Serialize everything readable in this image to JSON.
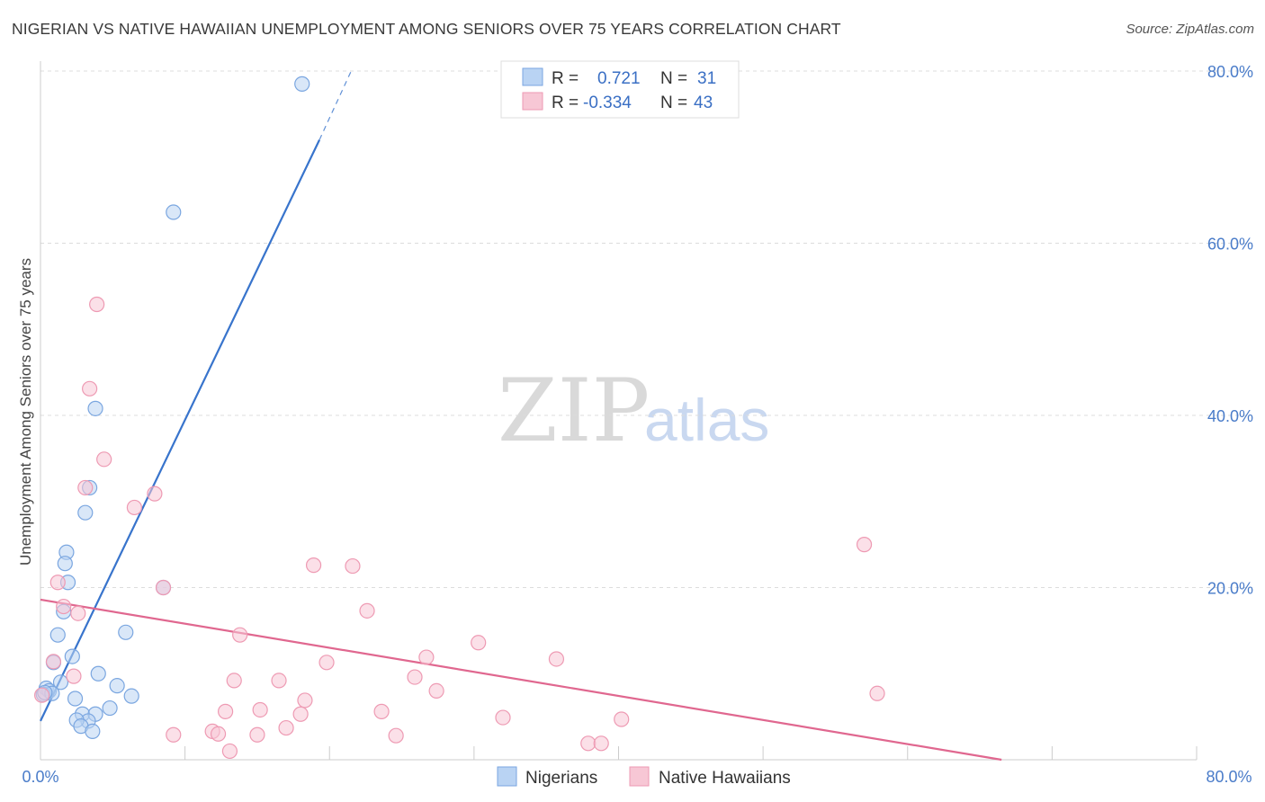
{
  "title": "NIGERIAN VS NATIVE HAWAIIAN UNEMPLOYMENT AMONG SENIORS OVER 75 YEARS CORRELATION CHART",
  "source": "Source: ZipAtlas.com",
  "watermark": {
    "part1": "ZIP",
    "part2": "atlas"
  },
  "colors": {
    "blue_fill": "#b9d3f3",
    "blue_stroke": "#7aa6e0",
    "blue_line": "#3874cc",
    "pink_fill": "#f7c7d5",
    "pink_stroke": "#ee9ab3",
    "pink_line": "#e0678f",
    "tick_text": "#4a7cc9",
    "grid": "#dcdcdc"
  },
  "legend_box": {
    "row1": {
      "r_label": "R =",
      "r_value": "0.721",
      "n_label": "N =",
      "n_value": "31"
    },
    "row2": {
      "r_label": "R =",
      "r_value": "-0.334",
      "n_label": "N =",
      "n_value": "43"
    }
  },
  "chart_data": {
    "type": "scatter",
    "title": "NIGERIAN VS NATIVE HAWAIIAN UNEMPLOYMENT AMONG SENIORS OVER 75 YEARS CORRELATION CHART",
    "xlabel": "",
    "ylabel": "Unemployment Among Seniors over 75 years",
    "xlim": [
      0,
      80
    ],
    "ylim": [
      0,
      80
    ],
    "x_tick_labels": [
      "0.0%",
      "80.0%"
    ],
    "y_ticks": [
      20,
      40,
      60,
      80
    ],
    "y_tick_labels": [
      "20.0%",
      "40.0%",
      "60.0%",
      "80.0%"
    ],
    "grid": true,
    "legend_position": "bottom-center",
    "series": [
      {
        "name": "Nigerians",
        "color": "#b9d3f3",
        "r": 0.721,
        "n": 31,
        "trend": {
          "x": [
            0.0,
            19.3
          ],
          "y": [
            4.5,
            72.0
          ],
          "dashed_extension": {
            "x": [
              19.3,
              21.5
            ],
            "y": [
              72.0,
              80.0
            ]
          }
        },
        "points": [
          {
            "x": 18.1,
            "y": 78.5
          },
          {
            "x": 9.2,
            "y": 63.6
          },
          {
            "x": 3.8,
            "y": 40.8
          },
          {
            "x": 3.4,
            "y": 31.6
          },
          {
            "x": 3.1,
            "y": 28.7
          },
          {
            "x": 1.8,
            "y": 24.1
          },
          {
            "x": 1.7,
            "y": 22.8
          },
          {
            "x": 1.9,
            "y": 20.6
          },
          {
            "x": 8.5,
            "y": 20.0
          },
          {
            "x": 1.6,
            "y": 17.2
          },
          {
            "x": 1.2,
            "y": 14.5
          },
          {
            "x": 5.9,
            "y": 14.8
          },
          {
            "x": 2.2,
            "y": 12.0
          },
          {
            "x": 0.9,
            "y": 11.3
          },
          {
            "x": 4.0,
            "y": 10.0
          },
          {
            "x": 1.4,
            "y": 9.0
          },
          {
            "x": 0.4,
            "y": 8.3
          },
          {
            "x": 0.6,
            "y": 8.0
          },
          {
            "x": 0.2,
            "y": 7.6
          },
          {
            "x": 0.8,
            "y": 7.7
          },
          {
            "x": 5.3,
            "y": 8.6
          },
          {
            "x": 6.3,
            "y": 7.4
          },
          {
            "x": 2.4,
            "y": 7.1
          },
          {
            "x": 4.8,
            "y": 6.0
          },
          {
            "x": 2.9,
            "y": 5.3
          },
          {
            "x": 3.8,
            "y": 5.3
          },
          {
            "x": 3.3,
            "y": 4.5
          },
          {
            "x": 2.5,
            "y": 4.6
          },
          {
            "x": 2.8,
            "y": 3.9
          },
          {
            "x": 3.6,
            "y": 3.3
          },
          {
            "x": 0.3,
            "y": 7.8
          }
        ]
      },
      {
        "name": "Native Hawaiians",
        "color": "#f7c7d5",
        "r": -0.334,
        "n": 43,
        "trend": {
          "x": [
            0.0,
            66.5
          ],
          "y": [
            18.6,
            0.0
          ]
        },
        "points": [
          {
            "x": 3.9,
            "y": 52.9
          },
          {
            "x": 3.4,
            "y": 43.1
          },
          {
            "x": 4.4,
            "y": 34.9
          },
          {
            "x": 3.1,
            "y": 31.6
          },
          {
            "x": 7.9,
            "y": 30.9
          },
          {
            "x": 6.5,
            "y": 29.3
          },
          {
            "x": 57.0,
            "y": 25.0
          },
          {
            "x": 18.9,
            "y": 22.6
          },
          {
            "x": 21.6,
            "y": 22.5
          },
          {
            "x": 1.2,
            "y": 20.6
          },
          {
            "x": 8.5,
            "y": 20.0
          },
          {
            "x": 1.6,
            "y": 17.8
          },
          {
            "x": 2.6,
            "y": 17.0
          },
          {
            "x": 22.6,
            "y": 17.3
          },
          {
            "x": 13.8,
            "y": 14.5
          },
          {
            "x": 0.9,
            "y": 11.4
          },
          {
            "x": 19.8,
            "y": 11.3
          },
          {
            "x": 26.7,
            "y": 11.9
          },
          {
            "x": 30.3,
            "y": 13.6
          },
          {
            "x": 35.7,
            "y": 11.7
          },
          {
            "x": 2.3,
            "y": 9.7
          },
          {
            "x": 13.4,
            "y": 9.2
          },
          {
            "x": 16.5,
            "y": 9.2
          },
          {
            "x": 25.9,
            "y": 9.6
          },
          {
            "x": 27.4,
            "y": 8.0
          },
          {
            "x": 57.9,
            "y": 7.7
          },
          {
            "x": 18.3,
            "y": 6.9
          },
          {
            "x": 15.2,
            "y": 5.8
          },
          {
            "x": 12.8,
            "y": 5.6
          },
          {
            "x": 23.6,
            "y": 5.6
          },
          {
            "x": 18.0,
            "y": 5.3
          },
          {
            "x": 32.0,
            "y": 4.9
          },
          {
            "x": 40.2,
            "y": 4.7
          },
          {
            "x": 17.0,
            "y": 3.7
          },
          {
            "x": 11.9,
            "y": 3.3
          },
          {
            "x": 12.3,
            "y": 3.0
          },
          {
            "x": 9.2,
            "y": 2.9
          },
          {
            "x": 15.0,
            "y": 2.9
          },
          {
            "x": 24.6,
            "y": 2.8
          },
          {
            "x": 37.9,
            "y": 1.9
          },
          {
            "x": 38.8,
            "y": 1.9
          },
          {
            "x": 13.1,
            "y": 1.0
          },
          {
            "x": 0.1,
            "y": 7.5
          }
        ]
      }
    ]
  }
}
